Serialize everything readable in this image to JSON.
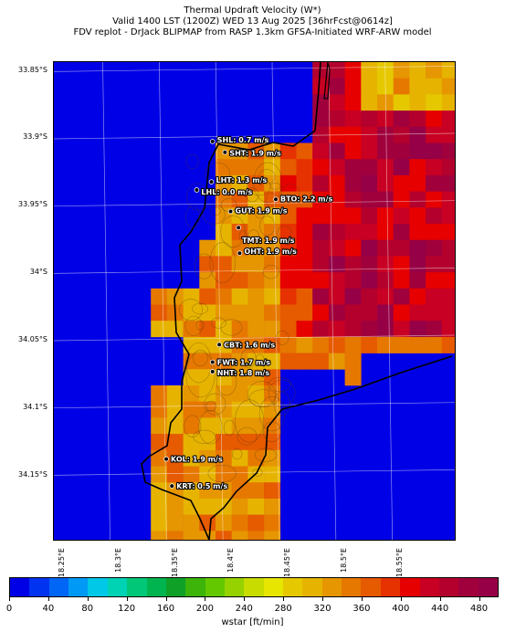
{
  "titles": {
    "line1": "Thermal Updraft Velocity (W*)",
    "line2": "Valid 1400 LST (1200Z) WED 13 Aug 2025 [36hrFcst@0614z]",
    "line3": "FDV replot - DrJack BLIPMAP from RASP 1.3km GFSA-Initiated WRF-ARW model"
  },
  "axes": {
    "lat_labels": [
      "33.85°S",
      "33.9°S",
      "33.95°S",
      "34°S",
      "34.05°S",
      "34.1°S",
      "34.15°S"
    ],
    "lon_labels": [
      "18.25°E",
      "18.3°E",
      "18.35°E",
      "18.4°E",
      "18.45°E",
      "18.5°E",
      "18.55°E"
    ]
  },
  "stations": [
    {
      "id": "SHL",
      "label": "SHL: 0.7 m/s",
      "lat": -33.904,
      "lon": 18.394
    },
    {
      "id": "SHT",
      "label": "SHT: 1.9 m/s",
      "lat": -33.912,
      "lon": 18.405
    },
    {
      "id": "LHT",
      "label": "LHT: 1.3 m/s",
      "lat": -33.934,
      "lon": 18.393
    },
    {
      "id": "LHL",
      "label": "LHL: 0.0 m/s",
      "lat": -33.94,
      "lon": 18.38
    },
    {
      "id": "BTO",
      "label": "BTO: 2.2 m/s",
      "lat": -33.947,
      "lon": 18.45
    },
    {
      "id": "GUT",
      "label": "GUT: 1.9 m/s",
      "lat": -33.956,
      "lon": 18.41
    },
    {
      "id": "TMT",
      "label": "TMT: 1.9 m/s",
      "lat": -33.968,
      "lon": 18.417
    },
    {
      "id": "OHT",
      "label": "OHT: 1.9 m/s",
      "lat": -33.987,
      "lon": 18.418
    },
    {
      "id": "CBT",
      "label": "CBT: 1.6 m/s",
      "lat": -34.055,
      "lon": 18.4
    },
    {
      "id": "FWT",
      "label": "FWT: 1.7 m/s",
      "lat": -34.068,
      "lon": 18.394
    },
    {
      "id": "NHT",
      "label": "NHT: 1.8 m/s",
      "lat": -34.075,
      "lon": 18.394
    },
    {
      "id": "KOL",
      "label": "KOL: 1.9 m/s",
      "lat": -34.14,
      "lon": 18.353
    },
    {
      "id": "KRT",
      "label": "KRT: 0.5 m/s",
      "lat": -34.16,
      "lon": 18.358
    }
  ],
  "colorbar": {
    "title": "wstar [ft/min]",
    "tick_labels": [
      "0",
      "40",
      "80",
      "120",
      "160",
      "200",
      "240",
      "280",
      "320",
      "360",
      "400",
      "440",
      "480"
    ],
    "min": 0,
    "max": 500,
    "step": 20,
    "colors": [
      "#0000e6",
      "#0033f0",
      "#0066f5",
      "#0099f5",
      "#00c8e6",
      "#00d2b4",
      "#00c878",
      "#00b450",
      "#0fa028",
      "#3cb40a",
      "#64c800",
      "#96d200",
      "#c8dc00",
      "#e6e600",
      "#e6c800",
      "#e6b400",
      "#e69600",
      "#e67800",
      "#e65a00",
      "#e63200",
      "#e60000",
      "#c80023",
      "#b4002d",
      "#a0003c",
      "#960046"
    ]
  }
}
